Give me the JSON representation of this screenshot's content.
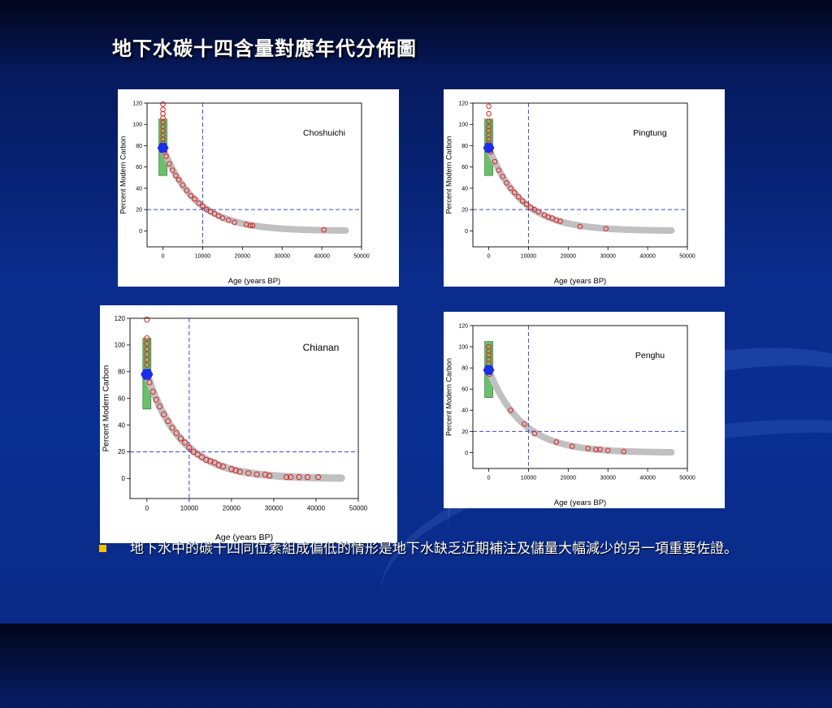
{
  "slide": {
    "title": "地下水碳十四含量對應年代分佈圖",
    "bullet_text": "地下水中的碳十四同位素組成偏低的情形是地下水缺乏近期補注及儲量大幅減少的另一項重要佐證。"
  },
  "colors": {
    "point": "#e02020",
    "curve": "#c0c0c0",
    "box_fill": "#3aa83a",
    "marker": "#1a2ee8",
    "ref_line": "#3c4bd4"
  },
  "chart_data": [
    {
      "type": "scatter",
      "region": "Choshuichi",
      "xlabel": "Age (years BP)",
      "ylabel": "Percent Modern Carbon",
      "xlim": [
        -4000,
        50000
      ],
      "ylim": [
        -15,
        120
      ],
      "xticks": [
        0,
        10000,
        20000,
        30000,
        40000,
        50000
      ],
      "yticks": [
        0,
        20,
        40,
        60,
        80,
        100,
        120
      ],
      "ref_x": 10000,
      "ref_y": 20,
      "modern_box": {
        "y_min": 52,
        "y_max": 105
      },
      "marker": {
        "x": 0,
        "y": 78
      },
      "decay_curve": {
        "y0": 78,
        "half_life_years": 5730,
        "x_max": 46000
      },
      "points": [
        {
          "x": 0,
          "y": 119
        },
        {
          "x": 0,
          "y": 114
        },
        {
          "x": 0,
          "y": 110
        },
        {
          "x": 0,
          "y": 106
        },
        {
          "x": 0,
          "y": 102
        },
        {
          "x": 0,
          "y": 98
        },
        {
          "x": 0,
          "y": 94
        },
        {
          "x": 0,
          "y": 90
        },
        {
          "x": 0,
          "y": 86
        },
        {
          "x": 0,
          "y": 82
        },
        {
          "x": 400,
          "y": 74
        },
        {
          "x": 800,
          "y": 70
        },
        {
          "x": 1600,
          "y": 63
        },
        {
          "x": 2400,
          "y": 57
        },
        {
          "x": 3200,
          "y": 52
        },
        {
          "x": 4000,
          "y": 48
        },
        {
          "x": 5000,
          "y": 43
        },
        {
          "x": 6000,
          "y": 38
        },
        {
          "x": 7000,
          "y": 33
        },
        {
          "x": 8000,
          "y": 30
        },
        {
          "x": 9000,
          "y": 26
        },
        {
          "x": 10000,
          "y": 23
        },
        {
          "x": 11000,
          "y": 20
        },
        {
          "x": 12000,
          "y": 18
        },
        {
          "x": 13000,
          "y": 16
        },
        {
          "x": 14000,
          "y": 14
        },
        {
          "x": 15000,
          "y": 12
        },
        {
          "x": 16500,
          "y": 10
        },
        {
          "x": 18000,
          "y": 8
        },
        {
          "x": 21000,
          "y": 6
        },
        {
          "x": 22000,
          "y": 5
        },
        {
          "x": 22600,
          "y": 5
        },
        {
          "x": 40500,
          "y": 1
        }
      ]
    },
    {
      "type": "scatter",
      "region": "Pingtung",
      "xlabel": "Age (years BP)",
      "ylabel": "Percent Modern Carbon",
      "xlim": [
        -4000,
        50000
      ],
      "ylim": [
        -15,
        120
      ],
      "xticks": [
        0,
        10000,
        20000,
        30000,
        40000,
        50000
      ],
      "yticks": [
        0,
        20,
        40,
        60,
        80,
        100,
        120
      ],
      "ref_x": 10000,
      "ref_y": 20,
      "modern_box": {
        "y_min": 52,
        "y_max": 105
      },
      "marker": {
        "x": 0,
        "y": 78
      },
      "decay_curve": {
        "y0": 78,
        "half_life_years": 5730,
        "x_max": 46000
      },
      "points": [
        {
          "x": 0,
          "y": 117
        },
        {
          "x": 0,
          "y": 110
        },
        {
          "x": 0,
          "y": 103
        },
        {
          "x": 0,
          "y": 98
        },
        {
          "x": 0,
          "y": 94
        },
        {
          "x": 0,
          "y": 90
        },
        {
          "x": 0,
          "y": 86
        },
        {
          "x": 0,
          "y": 82
        },
        {
          "x": 500,
          "y": 74
        },
        {
          "x": 1500,
          "y": 65
        },
        {
          "x": 2500,
          "y": 57
        },
        {
          "x": 3500,
          "y": 51
        },
        {
          "x": 4500,
          "y": 45
        },
        {
          "x": 5500,
          "y": 40
        },
        {
          "x": 6500,
          "y": 36
        },
        {
          "x": 7500,
          "y": 32
        },
        {
          "x": 8500,
          "y": 28
        },
        {
          "x": 9500,
          "y": 25
        },
        {
          "x": 10500,
          "y": 22
        },
        {
          "x": 11500,
          "y": 20
        },
        {
          "x": 12500,
          "y": 18
        },
        {
          "x": 14000,
          "y": 15
        },
        {
          "x": 15000,
          "y": 13
        },
        {
          "x": 16000,
          "y": 12
        },
        {
          "x": 17000,
          "y": 10
        },
        {
          "x": 18000,
          "y": 9
        },
        {
          "x": 23000,
          "y": 4
        },
        {
          "x": 29500,
          "y": 2
        }
      ]
    },
    {
      "type": "scatter",
      "region": "Chianan",
      "xlabel": "Age (years BP)",
      "ylabel": "Percent Modern Carbon",
      "xlim": [
        -4000,
        50000
      ],
      "ylim": [
        -15,
        120
      ],
      "xticks": [
        0,
        10000,
        20000,
        30000,
        40000,
        50000
      ],
      "yticks": [
        0,
        20,
        40,
        60,
        80,
        100,
        120
      ],
      "ref_x": 10000,
      "ref_y": 20,
      "modern_box": {
        "y_min": 52,
        "y_max": 105
      },
      "marker": {
        "x": 0,
        "y": 78
      },
      "decay_curve": {
        "y0": 78,
        "half_life_years": 5730,
        "x_max": 46000
      },
      "points": [
        {
          "x": 0,
          "y": 119
        },
        {
          "x": 0,
          "y": 105
        },
        {
          "x": 0,
          "y": 101
        },
        {
          "x": 0,
          "y": 97
        },
        {
          "x": 0,
          "y": 93
        },
        {
          "x": 0,
          "y": 89
        },
        {
          "x": 0,
          "y": 85
        },
        {
          "x": 600,
          "y": 72
        },
        {
          "x": 1400,
          "y": 65
        },
        {
          "x": 2200,
          "y": 59
        },
        {
          "x": 3000,
          "y": 54
        },
        {
          "x": 4000,
          "y": 48
        },
        {
          "x": 5000,
          "y": 43
        },
        {
          "x": 6000,
          "y": 38
        },
        {
          "x": 7000,
          "y": 34
        },
        {
          "x": 8000,
          "y": 30
        },
        {
          "x": 9000,
          "y": 27
        },
        {
          "x": 10000,
          "y": 23
        },
        {
          "x": 11000,
          "y": 20
        },
        {
          "x": 12000,
          "y": 18
        },
        {
          "x": 13000,
          "y": 16
        },
        {
          "x": 14000,
          "y": 14
        },
        {
          "x": 15000,
          "y": 13
        },
        {
          "x": 16000,
          "y": 12
        },
        {
          "x": 17000,
          "y": 10
        },
        {
          "x": 18000,
          "y": 9
        },
        {
          "x": 20000,
          "y": 7
        },
        {
          "x": 21000,
          "y": 6
        },
        {
          "x": 22000,
          "y": 5
        },
        {
          "x": 24000,
          "y": 4
        },
        {
          "x": 26000,
          "y": 3
        },
        {
          "x": 28000,
          "y": 3
        },
        {
          "x": 29000,
          "y": 2
        },
        {
          "x": 33000,
          "y": 1
        },
        {
          "x": 34000,
          "y": 1
        },
        {
          "x": 36000,
          "y": 1
        },
        {
          "x": 38000,
          "y": 1
        },
        {
          "x": 40500,
          "y": 1
        }
      ]
    },
    {
      "type": "scatter",
      "region": "Penghu",
      "xlabel": "Age (years BP)",
      "ylabel": "Percent Modern Carbon",
      "xlim": [
        -4000,
        50000
      ],
      "ylim": [
        -15,
        120
      ],
      "xticks": [
        0,
        10000,
        20000,
        30000,
        40000,
        50000
      ],
      "yticks": [
        0,
        20,
        40,
        60,
        80,
        100,
        120
      ],
      "ref_x": 10000,
      "ref_y": 20,
      "modern_box": {
        "y_min": 52,
        "y_max": 105
      },
      "marker": {
        "x": 0,
        "y": 78
      },
      "decay_curve": {
        "y0": 78,
        "half_life_years": 5730,
        "x_max": 46000
      },
      "points": [
        {
          "x": 0,
          "y": 100
        },
        {
          "x": 0,
          "y": 96
        },
        {
          "x": 0,
          "y": 92
        },
        {
          "x": 0,
          "y": 88
        },
        {
          "x": 0,
          "y": 84
        },
        {
          "x": 200,
          "y": 74
        },
        {
          "x": 5500,
          "y": 40
        },
        {
          "x": 9000,
          "y": 27
        },
        {
          "x": 11500,
          "y": 18
        },
        {
          "x": 17000,
          "y": 10
        },
        {
          "x": 21000,
          "y": 6
        },
        {
          "x": 25000,
          "y": 4
        },
        {
          "x": 27000,
          "y": 3
        },
        {
          "x": 28000,
          "y": 3
        },
        {
          "x": 30000,
          "y": 2
        },
        {
          "x": 34000,
          "y": 1
        }
      ]
    }
  ]
}
